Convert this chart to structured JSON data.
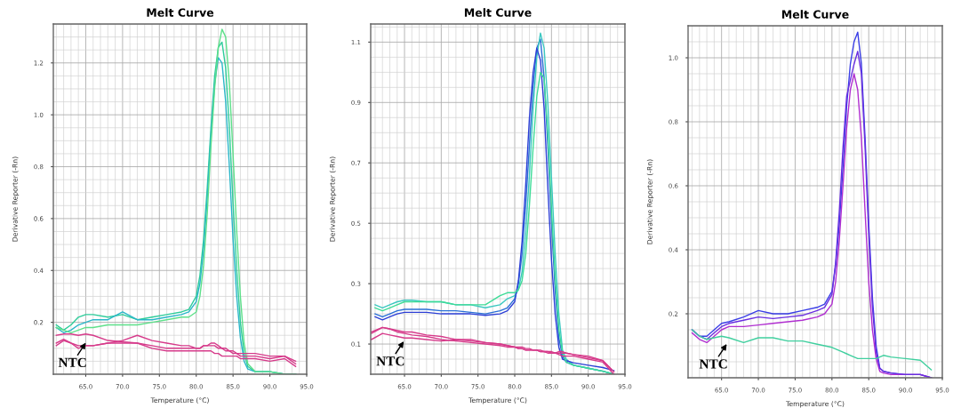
{
  "chart_data": [
    {
      "type": "line",
      "title": "Melt Curve",
      "xlabel": "Temperature (°C)",
      "ylabel": "Derivative Reporter (-Rn)",
      "legend": false,
      "grid": true,
      "xlim": [
        60.6,
        95
      ],
      "ylim": [
        0,
        1.35
      ],
      "xticks": [
        {
          "value": 65,
          "label": "65.0"
        },
        {
          "value": 70,
          "label": "70.0"
        },
        {
          "value": 75,
          "label": "75.0"
        },
        {
          "value": 80,
          "label": "80.0"
        },
        {
          "value": 85,
          "label": "85.0"
        },
        {
          "value": 90,
          "label": "90.0"
        },
        {
          "value": 95,
          "label": "95.0"
        }
      ],
      "yticks": [
        0.2,
        0.4,
        0.6,
        0.8,
        {
          "value": 1,
          "label": "1.0"
        },
        1.2
      ],
      "x": [
        61,
        62,
        63,
        64,
        65,
        66,
        68,
        70,
        72,
        74,
        76,
        78,
        79,
        80,
        80.5,
        81,
        81.5,
        82,
        82.5,
        83,
        83.5,
        84,
        84.5,
        85,
        85.5,
        86,
        86.5,
        87,
        88,
        90,
        92,
        93.5
      ],
      "annotations": [
        "NTC"
      ],
      "series": [
        {
          "color": "#2ecc9a",
          "values": [
            0.19,
            0.17,
            0.19,
            0.22,
            0.23,
            0.23,
            0.22,
            0.23,
            0.21,
            0.22,
            0.23,
            0.24,
            0.25,
            0.3,
            0.38,
            0.52,
            0.72,
            0.95,
            1.15,
            1.26,
            1.28,
            1.18,
            0.95,
            0.66,
            0.4,
            0.2,
            0.08,
            0.03,
            0.01,
            0.01,
            0.0,
            0.0
          ]
        },
        {
          "color": "#29b6c8",
          "values": [
            0.18,
            0.16,
            0.17,
            0.19,
            0.2,
            0.21,
            0.21,
            0.24,
            0.21,
            0.21,
            0.22,
            0.23,
            0.24,
            0.28,
            0.35,
            0.48,
            0.68,
            0.92,
            1.12,
            1.22,
            1.2,
            1.05,
            0.8,
            0.52,
            0.3,
            0.14,
            0.05,
            0.02,
            0.01,
            0.01,
            0.0,
            0.0
          ]
        },
        {
          "color": "#5ee08a",
          "values": [
            0.18,
            0.17,
            0.16,
            0.17,
            0.18,
            0.18,
            0.19,
            0.19,
            0.19,
            0.2,
            0.21,
            0.22,
            0.22,
            0.24,
            0.3,
            0.42,
            0.62,
            0.88,
            1.1,
            1.26,
            1.33,
            1.3,
            1.12,
            0.85,
            0.55,
            0.3,
            0.12,
            0.04,
            0.01,
            0.01,
            0.0,
            0.0
          ]
        },
        {
          "color": "#d63a8a",
          "values": [
            0.15,
            0.155,
            0.155,
            0.15,
            0.155,
            0.15,
            0.13,
            0.125,
            0.12,
            0.11,
            0.1,
            0.1,
            0.1,
            0.1,
            0.1,
            0.11,
            0.11,
            0.11,
            0.11,
            0.1,
            0.1,
            0.09,
            0.09,
            0.09,
            0.08,
            0.08,
            0.08,
            0.08,
            0.08,
            0.07,
            0.07,
            0.04
          ]
        },
        {
          "color": "#d63a8a",
          "values": [
            0.12,
            0.135,
            0.12,
            0.11,
            0.11,
            0.11,
            0.12,
            0.13,
            0.15,
            0.13,
            0.12,
            0.11,
            0.11,
            0.1,
            0.1,
            0.11,
            0.11,
            0.12,
            0.12,
            0.11,
            0.1,
            0.1,
            0.09,
            0.08,
            0.08,
            0.07,
            0.07,
            0.07,
            0.07,
            0.06,
            0.07,
            0.05
          ]
        },
        {
          "color": "#d63a8a",
          "values": [
            0.11,
            0.13,
            0.12,
            0.1,
            0.11,
            0.11,
            0.12,
            0.12,
            0.12,
            0.1,
            0.09,
            0.09,
            0.09,
            0.09,
            0.09,
            0.09,
            0.09,
            0.09,
            0.08,
            0.08,
            0.07,
            0.07,
            0.07,
            0.07,
            0.07,
            0.06,
            0.06,
            0.06,
            0.06,
            0.05,
            0.06,
            0.03
          ]
        }
      ]
    },
    {
      "type": "line",
      "title": "Melt Curve",
      "xlabel": "Temperature (°C)",
      "ylabel": "Derivative Reporter (-Rn)",
      "legend": false,
      "grid": true,
      "xlim": [
        60.4,
        95
      ],
      "ylim": [
        0,
        1.16
      ],
      "xticks": [
        {
          "value": 65,
          "label": "65.0"
        },
        {
          "value": 70,
          "label": "70.0"
        },
        {
          "value": 75,
          "label": "75.0"
        },
        {
          "value": 80,
          "label": "80.0"
        },
        {
          "value": 85,
          "label": "85.0"
        },
        {
          "value": 90,
          "label": "90.0"
        },
        {
          "value": 95,
          "label": "95.0"
        }
      ],
      "yticks": [
        0.1,
        0.3,
        0.5,
        0.7,
        0.9,
        1.1
      ],
      "x": [
        61,
        62,
        63,
        64,
        65,
        66,
        68,
        70,
        72,
        74,
        76,
        78,
        79,
        80,
        80.5,
        81,
        81.5,
        82,
        82.5,
        83,
        83.5,
        84,
        84.5,
        85,
        85.5,
        86,
        86.5,
        87,
        88,
        90,
        92,
        93.5
      ],
      "annotations": [
        "NTC"
      ],
      "series": [
        {
          "color": "#2a6fd6",
          "values": [
            0.2,
            0.19,
            0.2,
            0.21,
            0.215,
            0.215,
            0.215,
            0.21,
            0.21,
            0.205,
            0.2,
            0.21,
            0.22,
            0.25,
            0.3,
            0.4,
            0.56,
            0.76,
            0.95,
            1.08,
            1.11,
            0.98,
            0.76,
            0.5,
            0.28,
            0.12,
            0.06,
            0.04,
            0.03,
            0.02,
            0.01,
            0.0
          ]
        },
        {
          "color": "#3cc8c0",
          "values": [
            0.23,
            0.22,
            0.23,
            0.24,
            0.245,
            0.245,
            0.24,
            0.24,
            0.23,
            0.23,
            0.22,
            0.23,
            0.25,
            0.26,
            0.28,
            0.34,
            0.47,
            0.66,
            0.88,
            1.05,
            1.13,
            1.08,
            0.9,
            0.65,
            0.4,
            0.2,
            0.08,
            0.05,
            0.03,
            0.02,
            0.01,
            0.0
          ]
        },
        {
          "color": "#2c3fd6",
          "values": [
            0.19,
            0.18,
            0.19,
            0.2,
            0.205,
            0.205,
            0.205,
            0.2,
            0.2,
            0.2,
            0.195,
            0.2,
            0.21,
            0.24,
            0.31,
            0.44,
            0.63,
            0.85,
            1.0,
            1.08,
            1.04,
            0.88,
            0.62,
            0.38,
            0.2,
            0.09,
            0.05,
            0.045,
            0.038,
            0.03,
            0.022,
            0.012
          ]
        },
        {
          "color": "#3ddc97",
          "values": [
            0.22,
            0.21,
            0.22,
            0.23,
            0.24,
            0.24,
            0.24,
            0.24,
            0.23,
            0.23,
            0.23,
            0.26,
            0.27,
            0.27,
            0.28,
            0.31,
            0.4,
            0.56,
            0.75,
            0.92,
            1.0,
            0.98,
            0.8,
            0.55,
            0.32,
            0.15,
            0.07,
            0.04,
            0.03,
            0.02,
            0.01,
            0.0
          ]
        },
        {
          "color": "#d63a8a",
          "x": [
            60.5,
            62,
            63,
            64,
            65,
            66,
            68,
            70,
            72,
            74,
            76,
            78,
            79,
            80,
            80.5,
            81,
            81.5,
            82,
            82.5,
            83,
            83.5,
            84,
            84.5,
            85,
            85.5,
            86,
            86.5,
            87,
            88,
            90,
            92,
            93.5
          ],
          "values": [
            0.14,
            0.155,
            0.15,
            0.14,
            0.135,
            0.13,
            0.125,
            0.115,
            0.11,
            0.105,
            0.1,
            0.095,
            0.09,
            0.09,
            0.085,
            0.085,
            0.08,
            0.08,
            0.08,
            0.08,
            0.075,
            0.075,
            0.07,
            0.07,
            0.07,
            0.065,
            0.06,
            0.06,
            0.06,
            0.05,
            0.04,
            0.0
          ]
        },
        {
          "color": "#d63a8a",
          "x": [
            60.5,
            62,
            63,
            64,
            65,
            66,
            68,
            70,
            72,
            74,
            76,
            78,
            79,
            80,
            80.5,
            81,
            81.5,
            82,
            82.5,
            83,
            83.5,
            84,
            84.5,
            85,
            85.5,
            86,
            86.5,
            87,
            88,
            90,
            92,
            93.5
          ],
          "values": [
            0.135,
            0.155,
            0.15,
            0.145,
            0.14,
            0.14,
            0.13,
            0.125,
            0.115,
            0.11,
            0.105,
            0.1,
            0.095,
            0.09,
            0.09,
            0.09,
            0.085,
            0.085,
            0.08,
            0.08,
            0.08,
            0.075,
            0.075,
            0.075,
            0.07,
            0.07,
            0.07,
            0.07,
            0.065,
            0.06,
            0.045,
            0.008
          ]
        },
        {
          "color": "#d63a8a",
          "x": [
            60.5,
            62,
            63,
            64,
            65,
            66,
            68,
            70,
            72,
            74,
            76,
            78,
            79,
            80,
            80.5,
            81,
            81.5,
            82,
            82.5,
            83,
            83.5,
            84,
            84.5,
            85,
            85.5,
            86,
            86.5,
            87,
            88,
            90,
            92,
            93.2
          ],
          "values": [
            0.115,
            0.135,
            0.13,
            0.125,
            0.12,
            0.12,
            0.115,
            0.11,
            0.115,
            0.115,
            0.105,
            0.1,
            0.095,
            0.09,
            0.085,
            0.085,
            0.08,
            0.08,
            0.08,
            0.08,
            0.075,
            0.075,
            0.075,
            0.07,
            0.07,
            0.075,
            0.075,
            0.07,
            0.065,
            0.055,
            0.045,
            0.015
          ]
        }
      ]
    },
    {
      "type": "line",
      "title": "Melt Curve",
      "xlabel": "Temperature (°C)",
      "ylabel": "Derivative Reporter (-Rn)",
      "legend": false,
      "grid": true,
      "xlim": [
        60.45,
        95
      ],
      "ylim": [
        0,
        1.1
      ],
      "xticks": [
        {
          "value": 65,
          "label": "65.0"
        },
        {
          "value": 70,
          "label": "70.0"
        },
        {
          "value": 75,
          "label": "75.0"
        },
        {
          "value": 80,
          "label": "80.0"
        },
        {
          "value": 85,
          "label": "85.0"
        },
        {
          "value": 90,
          "label": "90.0"
        },
        {
          "value": 95,
          "label": "95.0"
        }
      ],
      "yticks": [
        0.2,
        0.4,
        0.6,
        0.8,
        {
          "value": 1,
          "label": "1.0"
        }
      ],
      "x": [
        61,
        62,
        63,
        64,
        65,
        66,
        68,
        70,
        72,
        74,
        76,
        78,
        79,
        80,
        80.5,
        81,
        81.5,
        82,
        82.5,
        83,
        83.5,
        84,
        84.5,
        85,
        85.5,
        86,
        86.5,
        87,
        88,
        90,
        92,
        93.5
      ],
      "annotations": [
        "NTC"
      ],
      "series": [
        {
          "color": "#3a3ee6",
          "values": [
            0.15,
            0.13,
            0.13,
            0.15,
            0.17,
            0.175,
            0.19,
            0.21,
            0.2,
            0.2,
            0.21,
            0.22,
            0.23,
            0.27,
            0.35,
            0.48,
            0.66,
            0.85,
            0.98,
            1.05,
            1.08,
            0.98,
            0.75,
            0.48,
            0.25,
            0.1,
            0.03,
            0.02,
            0.015,
            0.01,
            0.01,
            0.0
          ]
        },
        {
          "color": "#b02ed0",
          "values": [
            0.14,
            0.12,
            0.11,
            0.13,
            0.15,
            0.16,
            0.16,
            0.165,
            0.17,
            0.175,
            0.18,
            0.19,
            0.2,
            0.23,
            0.3,
            0.43,
            0.6,
            0.78,
            0.9,
            0.95,
            0.9,
            0.75,
            0.52,
            0.3,
            0.15,
            0.06,
            0.02,
            0.015,
            0.01,
            0.01,
            0.01,
            0.0
          ]
        },
        {
          "color": "#6a2ee0",
          "values": [
            0.15,
            0.13,
            0.12,
            0.14,
            0.16,
            0.17,
            0.18,
            0.19,
            0.185,
            0.19,
            0.195,
            0.21,
            0.22,
            0.26,
            0.36,
            0.52,
            0.72,
            0.88,
            0.93,
            0.98,
            1.02,
            0.95,
            0.72,
            0.45,
            0.22,
            0.08,
            0.03,
            0.02,
            0.015,
            0.01,
            0.01,
            0.0
          ]
        },
        {
          "color": "#3fcf9e",
          "values": [
            0.15,
            0.13,
            0.12,
            0.125,
            0.13,
            0.125,
            0.11,
            0.125,
            0.125,
            0.115,
            0.115,
            0.105,
            0.1,
            0.095,
            0.09,
            0.085,
            0.08,
            0.075,
            0.07,
            0.065,
            0.06,
            0.06,
            0.06,
            0.06,
            0.06,
            0.06,
            0.065,
            0.07,
            0.065,
            0.06,
            0.055,
            0.025
          ]
        }
      ]
    }
  ]
}
